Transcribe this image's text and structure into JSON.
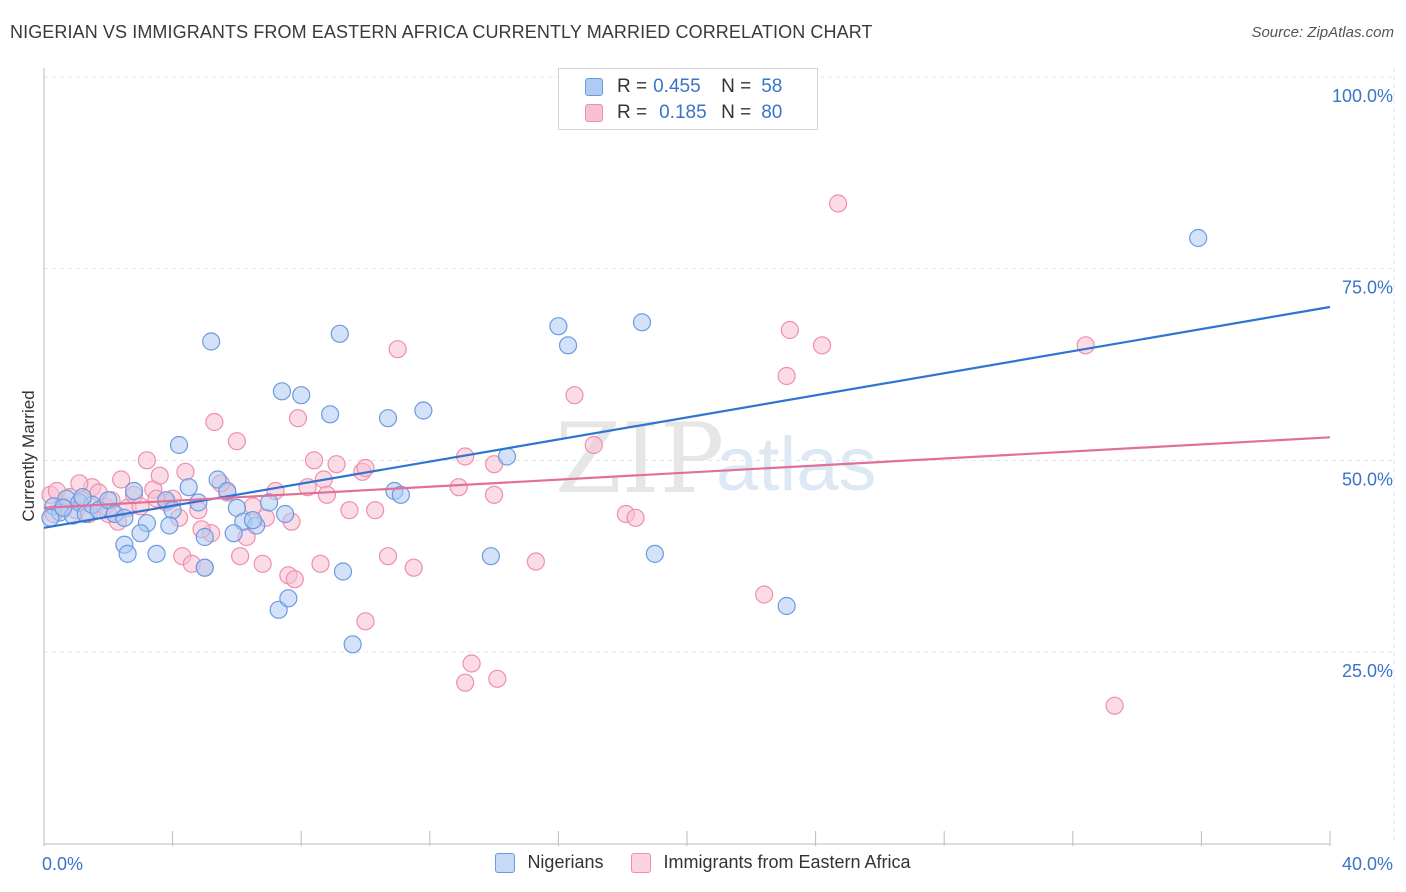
{
  "header": {
    "title": "NIGERIAN VS IMMIGRANTS FROM EASTERN AFRICA CURRENTLY MARRIED CORRELATION CHART",
    "source": "Source: ZipAtlas.com"
  },
  "watermark": {
    "zip": "ZIP",
    "atlas": "atlas"
  },
  "legend_top": [
    {
      "r_label": "R =",
      "r_value": "0.455",
      "n_label": "N =",
      "n_value": "58",
      "fill": "#aecbf2",
      "stroke": "#6a9be0"
    },
    {
      "r_label": "R =",
      "r_value": "0.185",
      "n_label": "N =",
      "n_value": "80",
      "fill": "#f8c0d1",
      "stroke": "#ee8fad"
    }
  ],
  "legend_bottom": [
    {
      "label": "Nigerians",
      "fill": "#c5daf6",
      "stroke": "#6a9be0"
    },
    {
      "label": "Immigrants from Eastern Africa",
      "fill": "#fbd3df",
      "stroke": "#ee8fad"
    }
  ],
  "colors": {
    "blue": "#2f74d0",
    "pink": "#e0709a",
    "axis_text": "#3a73c9",
    "grid": "#e3e3e3"
  },
  "chart_data": {
    "type": "scatter",
    "title": "NIGERIAN VS IMMIGRANTS FROM EASTERN AFRICA CURRENTLY MARRIED CORRELATION CHART",
    "xlabel": "",
    "ylabel": "Currently Married",
    "xlim": [
      0,
      40
    ],
    "ylim": [
      5,
      102
    ],
    "x_tick_labels": [
      {
        "value": 0,
        "label": "0.0%"
      },
      {
        "value": 40,
        "label": "40.0%"
      }
    ],
    "x_minor_ticks": [
      0,
      4,
      8,
      12,
      16,
      20,
      24,
      28,
      32,
      36,
      40
    ],
    "y_ticks": [
      {
        "value": 25,
        "label": "25.0%"
      },
      {
        "value": 50,
        "label": "50.0%"
      },
      {
        "value": 75,
        "label": "75.0%"
      },
      {
        "value": 100,
        "label": "100.0%"
      }
    ],
    "grid": true,
    "legend": "top-center",
    "series": [
      {
        "name": "Nigerians",
        "color": "#2f74d0",
        "fill": "#aecbf2",
        "trend": {
          "x": [
            0,
            40
          ],
          "y": [
            41.2,
            70.0
          ]
        },
        "points": [
          [
            0.3,
            44.0
          ],
          [
            0.5,
            43.2
          ],
          [
            0.7,
            45.0
          ],
          [
            0.9,
            42.8
          ],
          [
            1.1,
            44.5
          ],
          [
            1.3,
            43.0
          ],
          [
            1.5,
            44.2
          ],
          [
            1.7,
            43.5
          ],
          [
            2.0,
            44.8
          ],
          [
            2.2,
            43.0
          ],
          [
            2.5,
            42.5
          ],
          [
            2.8,
            46.0
          ],
          [
            2.5,
            39.0
          ],
          [
            2.6,
            37.8
          ],
          [
            3.2,
            41.8
          ],
          [
            3.0,
            40.5
          ],
          [
            3.5,
            37.8
          ],
          [
            3.8,
            44.8
          ],
          [
            4.0,
            43.5
          ],
          [
            3.9,
            41.5
          ],
          [
            4.2,
            52.0
          ],
          [
            4.5,
            46.5
          ],
          [
            5.2,
            65.5
          ],
          [
            5.4,
            47.5
          ],
          [
            5.7,
            46.0
          ],
          [
            6.0,
            43.8
          ],
          [
            6.2,
            42.0
          ],
          [
            5.9,
            40.5
          ],
          [
            5.0,
            40.0
          ],
          [
            5.0,
            36.0
          ],
          [
            6.6,
            41.5
          ],
          [
            7.0,
            44.5
          ],
          [
            7.4,
            59.0
          ],
          [
            7.5,
            43.0
          ],
          [
            7.3,
            30.5
          ],
          [
            7.6,
            32.0
          ],
          [
            8.0,
            58.5
          ],
          [
            8.9,
            56.0
          ],
          [
            9.2,
            66.5
          ],
          [
            9.3,
            35.5
          ],
          [
            9.6,
            26.0
          ],
          [
            10.7,
            55.5
          ],
          [
            10.9,
            46.0
          ],
          [
            11.1,
            45.5
          ],
          [
            11.8,
            56.5
          ],
          [
            13.9,
            37.5
          ],
          [
            14.4,
            50.5
          ],
          [
            16.0,
            67.5
          ],
          [
            16.3,
            65.0
          ],
          [
            18.6,
            68.0
          ],
          [
            19.0,
            37.8
          ],
          [
            23.1,
            31.0
          ],
          [
            35.9,
            79.0
          ],
          [
            0.2,
            42.5
          ],
          [
            0.6,
            43.8
          ],
          [
            1.2,
            45.2
          ],
          [
            4.8,
            44.5
          ],
          [
            6.5,
            42.2
          ]
        ]
      },
      {
        "name": "Immigrants from Eastern Africa",
        "color": "#e0709a",
        "fill": "#f8c0d1",
        "trend": {
          "x": [
            0,
            40
          ],
          "y": [
            43.8,
            53.0
          ]
        },
        "points": [
          [
            0.2,
            45.5
          ],
          [
            0.4,
            46.0
          ],
          [
            0.6,
            44.0
          ],
          [
            0.8,
            45.2
          ],
          [
            1.0,
            43.5
          ],
          [
            1.2,
            44.8
          ],
          [
            1.4,
            43.0
          ],
          [
            1.5,
            46.5
          ],
          [
            1.7,
            45.8
          ],
          [
            1.9,
            44.0
          ],
          [
            2.1,
            44.8
          ],
          [
            2.3,
            42.0
          ],
          [
            2.4,
            47.5
          ],
          [
            2.6,
            43.8
          ],
          [
            2.8,
            45.5
          ],
          [
            3.0,
            44.0
          ],
          [
            3.2,
            50.0
          ],
          [
            3.4,
            46.2
          ],
          [
            3.6,
            48.0
          ],
          [
            3.8,
            44.5
          ],
          [
            4.0,
            45.0
          ],
          [
            4.2,
            42.5
          ],
          [
            4.4,
            48.5
          ],
          [
            4.3,
            37.5
          ],
          [
            4.6,
            36.5
          ],
          [
            4.8,
            43.5
          ],
          [
            5.0,
            36.0
          ],
          [
            5.2,
            40.5
          ],
          [
            5.3,
            55.0
          ],
          [
            5.7,
            45.8
          ],
          [
            6.0,
            52.5
          ],
          [
            6.1,
            37.5
          ],
          [
            6.3,
            40.0
          ],
          [
            6.5,
            44.0
          ],
          [
            6.8,
            36.5
          ],
          [
            6.9,
            42.5
          ],
          [
            7.2,
            46.0
          ],
          [
            7.6,
            35.0
          ],
          [
            7.7,
            42.0
          ],
          [
            7.8,
            34.5
          ],
          [
            7.9,
            55.5
          ],
          [
            8.2,
            46.5
          ],
          [
            8.4,
            50.0
          ],
          [
            8.6,
            36.5
          ],
          [
            8.7,
            47.5
          ],
          [
            8.8,
            45.5
          ],
          [
            9.1,
            49.5
          ],
          [
            9.5,
            43.5
          ],
          [
            9.9,
            48.5
          ],
          [
            10.0,
            49.0
          ],
          [
            10.3,
            43.5
          ],
          [
            10.0,
            29.0
          ],
          [
            10.7,
            37.5
          ],
          [
            11.0,
            64.5
          ],
          [
            11.5,
            36.0
          ],
          [
            12.9,
            46.5
          ],
          [
            13.1,
            50.5
          ],
          [
            13.1,
            21.0
          ],
          [
            13.3,
            23.5
          ],
          [
            14.0,
            45.5
          ],
          [
            14.0,
            49.5
          ],
          [
            14.1,
            21.5
          ],
          [
            15.3,
            36.8
          ],
          [
            16.5,
            58.5
          ],
          [
            17.1,
            52.0
          ],
          [
            18.1,
            43.0
          ],
          [
            18.4,
            42.5
          ],
          [
            22.4,
            32.5
          ],
          [
            23.1,
            61.0
          ],
          [
            23.2,
            67.0
          ],
          [
            24.2,
            65.0
          ],
          [
            24.7,
            83.5
          ],
          [
            32.4,
            65.0
          ],
          [
            33.3,
            18.0
          ],
          [
            0.3,
            43.0
          ],
          [
            1.1,
            47.0
          ],
          [
            2.0,
            43.0
          ],
          [
            3.5,
            45.0
          ],
          [
            4.9,
            41.0
          ],
          [
            5.5,
            47.0
          ]
        ]
      }
    ]
  }
}
